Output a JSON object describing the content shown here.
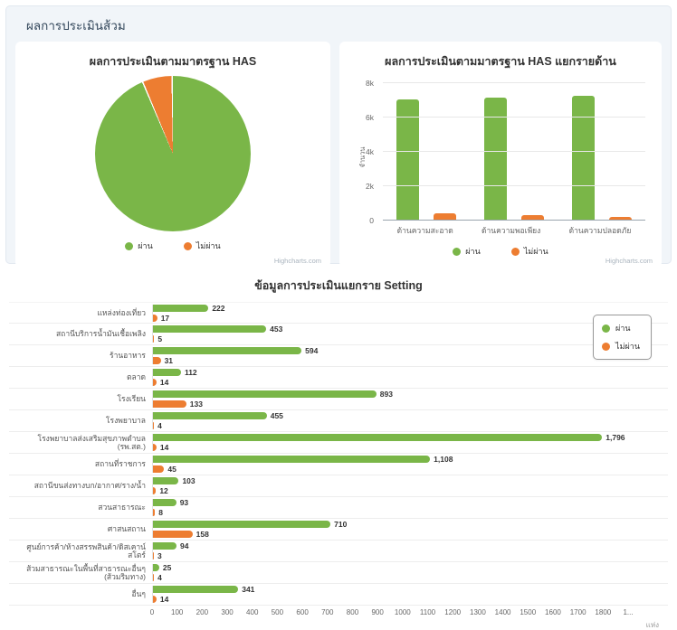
{
  "page": {
    "header": "ผลการประเมินส้วม",
    "credit": "Highcharts.com"
  },
  "colors": {
    "pass": "#7ab648",
    "fail": "#ed7d31"
  },
  "chart_data": [
    {
      "type": "pie",
      "title": "ผลการประเมินตามมาตรฐาน HAS",
      "series": [
        {
          "name": "ผ่าน",
          "value": 6999,
          "percent": 93.8
        },
        {
          "name": "ไม่ผ่าน",
          "value": 462,
          "percent": 6.2
        }
      ],
      "legend_position": "bottom"
    },
    {
      "type": "bar",
      "title": "ผลการประเมินตามมาตรฐาน HAS แยกรายด้าน",
      "categories": [
        "ด้านความสะอาด",
        "ด้านความพอเพียง",
        "ด้านความปลอดภัย"
      ],
      "series": [
        {
          "name": "ผ่าน",
          "values": [
            7050,
            7150,
            7250
          ]
        },
        {
          "name": "ไม่ผ่าน",
          "values": [
            420,
            310,
            210
          ]
        }
      ],
      "ylabel": "จำนวน",
      "yticks": [
        "0",
        "2k",
        "4k",
        "6k",
        "8k"
      ],
      "ylim": [
        0,
        8000
      ],
      "grid": true,
      "legend_position": "bottom"
    },
    {
      "type": "bar",
      "orientation": "horizontal",
      "title": "ข้อมูลการประเมินแยกราย Setting",
      "categories": [
        "แหล่งท่องเที่ยว",
        "สถานีบริการน้ำมันเชื้อเพลิง",
        "ร้านอาหาร",
        "ตลาด",
        "โรงเรียน",
        "โรงพยาบาล",
        "โรงพยาบาลส่งเสริมสุขภาพตำบล (รพ.สต.)",
        "สถานที่ราชการ",
        "สถานีขนส่งทางบก/อากาศ/ราง/น้ำ",
        "สวนสาธารณะ",
        "ศาสนสถาน",
        "ศูนย์การค้า/ห้างสรรพสินค้า/ดิสเคาน์สโตร์",
        "ส้วมสาธารณะในพื้นที่สาธารณะอื่นๆ (ส้วมริมทาง)",
        "อื่นๆ"
      ],
      "series": [
        {
          "name": "ผ่าน",
          "values": [
            222,
            453,
            594,
            112,
            893,
            455,
            1796,
            1108,
            103,
            93,
            710,
            94,
            25,
            341
          ]
        },
        {
          "name": "ไม่ผ่าน",
          "values": [
            17,
            5,
            31,
            14,
            133,
            4,
            14,
            45,
            12,
            8,
            158,
            3,
            4,
            14
          ]
        }
      ],
      "xticks": [
        "0",
        "100",
        "200",
        "300",
        "400",
        "500",
        "600",
        "700",
        "800",
        "900",
        "1000",
        "1100",
        "1200",
        "1300",
        "1400",
        "1500",
        "1600",
        "1700",
        "1800",
        "1..."
      ],
      "xlim": [
        0,
        1900
      ],
      "xunit": "แห่ง",
      "legend_position": "top-right"
    }
  ]
}
